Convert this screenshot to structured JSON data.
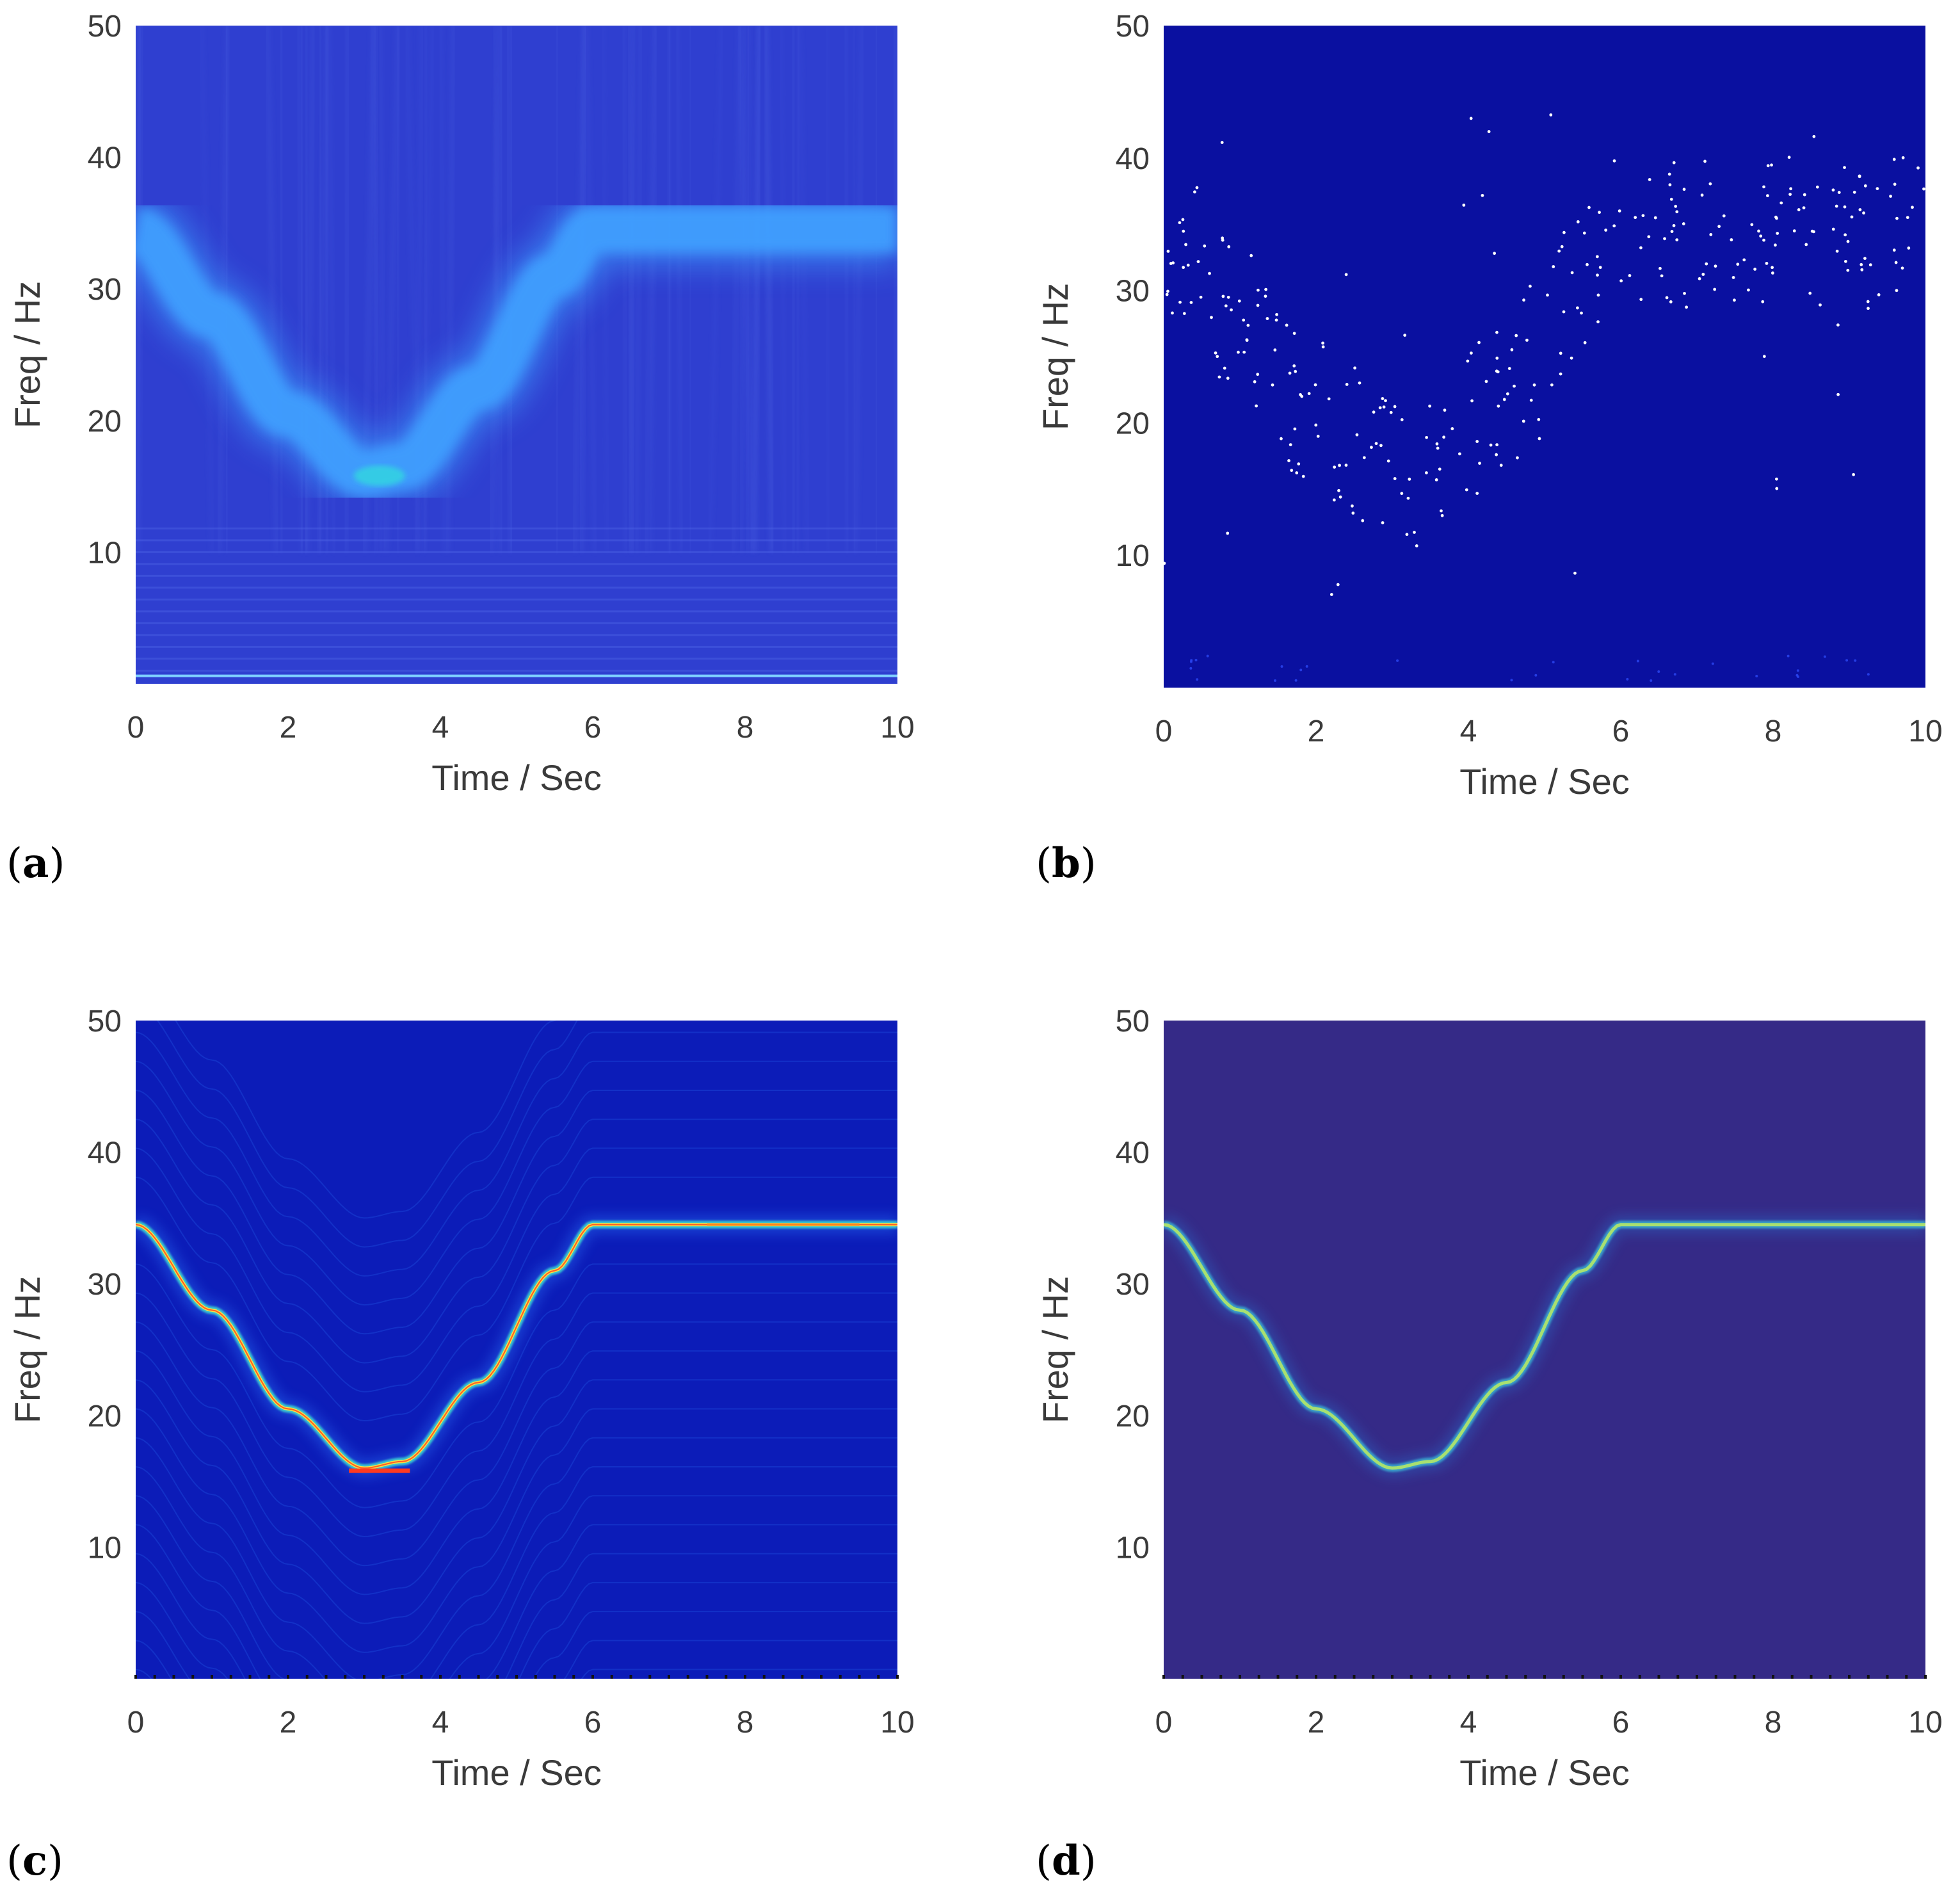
{
  "chart_data": [
    {
      "panel": "(a)",
      "panel_letter": "a",
      "type": "heatmap",
      "xlabel": "Time / Sec",
      "ylabel": "Freq / Hz",
      "xlim": [
        0,
        10
      ],
      "ylim": [
        0,
        50
      ],
      "xticks": [
        "0",
        "2",
        "4",
        "6",
        "8",
        "10"
      ],
      "yticks": [
        "10",
        "20",
        "30",
        "40",
        "50"
      ],
      "style": "broad",
      "colors": {
        "background": "#2f3fd0",
        "ridge": "#3fa0ff",
        "ridge_peak": "#30d8e0"
      },
      "ridge": [
        [
          0,
          34.5
        ],
        [
          1,
          28
        ],
        [
          2,
          20.5
        ],
        [
          3,
          16
        ],
        [
          3.5,
          16.5
        ],
        [
          4.5,
          22.5
        ],
        [
          5.5,
          31
        ],
        [
          6,
          34.5
        ],
        [
          10,
          34.5
        ]
      ],
      "ridge_width_hz": 3.5
    },
    {
      "panel": "(b)",
      "panel_letter": "b",
      "type": "heatmap",
      "xlabel": "Time / Sec",
      "ylabel": "Freq / Hz",
      "xlim": [
        0,
        10
      ],
      "ylim": [
        0,
        50
      ],
      "xticks": [
        "0",
        "2",
        "4",
        "6",
        "8",
        "10"
      ],
      "yticks": [
        "10",
        "20",
        "30",
        "40",
        "50"
      ],
      "style": "scatter",
      "colors": {
        "background": "#0a10a0",
        "points": "#ffffff"
      },
      "ridge": [
        [
          0,
          34.5
        ],
        [
          1,
          28
        ],
        [
          2,
          20.5
        ],
        [
          3,
          16
        ],
        [
          3.5,
          16.5
        ],
        [
          4.5,
          22.5
        ],
        [
          5.5,
          31
        ],
        [
          6,
          34.5
        ],
        [
          10,
          34.5
        ]
      ],
      "point_spread_hz": 6,
      "point_count": 320
    },
    {
      "panel": "(c)",
      "panel_letter": "c",
      "type": "heatmap",
      "xlabel": "Time / Sec",
      "ylabel": "Freq / Hz",
      "xlim": [
        0,
        10
      ],
      "ylim": [
        0,
        50
      ],
      "xticks": [
        "0",
        "2",
        "4",
        "6",
        "8",
        "10"
      ],
      "yticks": [
        "10",
        "20",
        "30",
        "40",
        "50"
      ],
      "style": "sharp-jet",
      "colors": {
        "background": "#0c1cb8",
        "glow": "#2f7bff",
        "ridge_outer": "#40e0d0",
        "ridge_inner": "#ffe040",
        "ridge_core": "#ff3a20"
      },
      "ridge": [
        [
          0,
          34.5
        ],
        [
          1,
          28
        ],
        [
          2,
          20.5
        ],
        [
          3,
          16
        ],
        [
          3.5,
          16.5
        ],
        [
          4.5,
          22.5
        ],
        [
          5.5,
          31
        ],
        [
          6,
          34.5
        ],
        [
          10,
          34.5
        ]
      ]
    },
    {
      "panel": "(d)",
      "panel_letter": "d",
      "type": "heatmap",
      "xlabel": "Time / Sec",
      "ylabel": "Freq / Hz",
      "xlim": [
        0,
        10
      ],
      "ylim": [
        0,
        50
      ],
      "xticks": [
        "0",
        "2",
        "4",
        "6",
        "8",
        "10"
      ],
      "yticks": [
        "10",
        "20",
        "30",
        "40",
        "50"
      ],
      "style": "sharp-parula",
      "colors": {
        "background": "#352a87",
        "glow": "#2a6fd0",
        "ridge_outer": "#3aaed0",
        "ridge_inner": "#a8e070"
      },
      "ridge": [
        [
          0,
          34.5
        ],
        [
          1,
          28
        ],
        [
          2,
          20.5
        ],
        [
          3,
          16
        ],
        [
          3.5,
          16.5
        ],
        [
          4.5,
          22.5
        ],
        [
          5.5,
          31
        ],
        [
          6,
          34.5
        ],
        [
          10,
          34.5
        ]
      ]
    }
  ]
}
